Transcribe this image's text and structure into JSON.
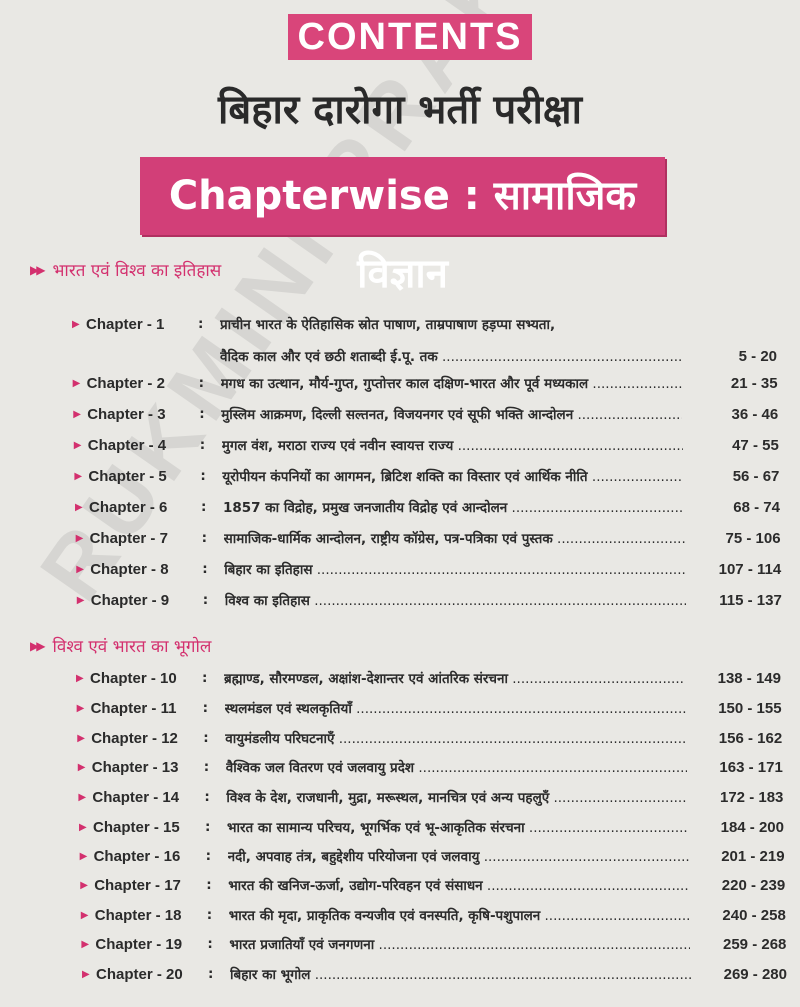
{
  "header": {
    "contents": "CONTENTS",
    "title": "बिहार दारोगा भर्ती परीक्षा",
    "banner": "Chapterwise : सामाजिक विज्ञान"
  },
  "watermark": "RUKMINI PRAKASHAN",
  "colors": {
    "accent": "#d23f78",
    "background": "#e9e8e4"
  },
  "sections": [
    {
      "title": "भारत एवं विश्व का इतिहास",
      "chapters": [
        {
          "label": "Chapter - 1",
          "title": "प्राचीन भारत के ऐतिहासिक स्रोत पाषाण, ताम्रपाषाण हड़प्पा सभ्यता,",
          "title2": "वैदिक काल और एवं छठी शताब्दी ई.पू. तक",
          "pages": "5 - 20"
        },
        {
          "label": "Chapter - 2",
          "title": "मगध का उत्थान, मौर्य-गुप्त, गुप्तोत्तर काल दक्षिण-भारत और पूर्व मध्यकाल",
          "pages": "21 - 35"
        },
        {
          "label": "Chapter - 3",
          "title": "मुस्लिम आक्रमण, दिल्ली सल्तनत, विजयनगर एवं सूफी भक्ति आन्दोलन",
          "pages": "36 - 46"
        },
        {
          "label": "Chapter - 4",
          "title": "मुगल वंश, मराठा राज्य एवं नवीन स्वायत्त राज्य",
          "pages": "47 - 55"
        },
        {
          "label": "Chapter - 5",
          "title": "यूरोपीयन कंपनियों का आगमन, ब्रिटिश शक्ति का विस्तार एवं आर्थिक नीति",
          "pages": "56 - 67"
        },
        {
          "label": "Chapter - 6",
          "title": "1857 का विद्रोह, प्रमुख जनजातीय विद्रोह एवं आन्दोलन",
          "pages": "68 - 74"
        },
        {
          "label": "Chapter - 7",
          "title": "सामाजिक-धार्मिक आन्दोलन, राष्ट्रीय कॉग्रेस, पत्र-पत्रिका एवं पुस्तक",
          "pages": "75 - 106"
        },
        {
          "label": "Chapter - 8",
          "title": "बिहार का इतिहास",
          "pages": "107 - 114"
        },
        {
          "label": "Chapter - 9",
          "title": "विश्व का इतिहास",
          "pages": "115 - 137"
        }
      ]
    },
    {
      "title": "विश्व एवं भारत का भूगोल",
      "chapters": [
        {
          "label": "Chapter - 10",
          "title": "ब्रह्माण्ड, सौरमण्डल, अक्षांश-देशान्तर एवं आंतरिक संरचना",
          "pages": "138 - 149"
        },
        {
          "label": "Chapter - 11",
          "title": "स्थलमंडल एवं स्थलकृतियाँ",
          "pages": "150 - 155"
        },
        {
          "label": "Chapter - 12",
          "title": "वायुमंडलीय परिघटनाएँ",
          "pages": "156 - 162"
        },
        {
          "label": "Chapter - 13",
          "title": "वैश्विक जल वितरण एवं जलवायु प्रदेश",
          "pages": "163 - 171"
        },
        {
          "label": "Chapter - 14",
          "title": "विश्व के देश, राजधानी, मुद्रा, मरूस्थल, मानचित्र एवं अन्य पहलुएँ",
          "pages": "172 - 183"
        },
        {
          "label": "Chapter - 15",
          "title": "भारत का सामान्य परिचय, भूगर्भिक एवं भू-आकृतिक संरचना",
          "pages": "184 - 200"
        },
        {
          "label": "Chapter - 16",
          "title": "नदी, अपवाह तंत्र, बहुद्देशीय परियोजना एवं जलवायु",
          "pages": "201 - 219"
        },
        {
          "label": "Chapter - 17",
          "title": "भारत की खनिज-ऊर्जा, उद्योग-परिवहन एवं संसाधन",
          "pages": "220 - 239"
        },
        {
          "label": "Chapter - 18",
          "title": "भारत की मृदा, प्राकृतिक वन्यजीव एवं वनस्पति, कृषि-पशुपालन",
          "pages": "240 - 258"
        },
        {
          "label": "Chapter - 19",
          "title": "भारत प्रजातियाँ एवं जनगणना",
          "pages": "259 - 268"
        },
        {
          "label": "Chapter - 20",
          "title": "बिहार का भूगोल",
          "pages": "269 - 280"
        }
      ]
    }
  ]
}
